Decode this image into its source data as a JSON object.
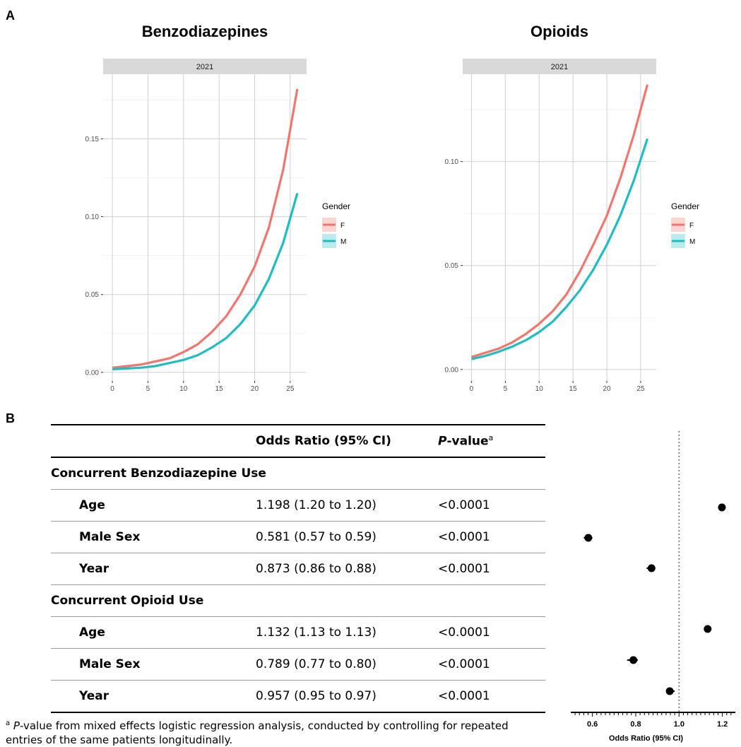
{
  "panel_a_label": "A",
  "panel_b_label": "B",
  "chart_data": [
    {
      "type": "line",
      "title": "Benzodiazepines",
      "facet_label": "2021",
      "legend": {
        "title": "Gender",
        "entries": [
          "F",
          "M"
        ],
        "placement": "right"
      },
      "xlim": [
        -1.3,
        27.3
      ],
      "ylim": [
        -0.0055,
        0.1915
      ],
      "x_ticks": [
        0,
        5,
        10,
        15,
        20,
        25
      ],
      "y_ticks": [
        0.0,
        0.05,
        0.1,
        0.15
      ],
      "y_tick_labels": [
        "0.00",
        "0.05",
        "0.10",
        "0.15"
      ],
      "grid": true,
      "colors": {
        "F": "#F0766E",
        "M": "#1FBDC1"
      },
      "x": [
        0,
        2,
        4,
        6,
        8,
        10,
        12,
        14,
        16,
        18,
        20,
        22,
        24,
        26
      ],
      "series": [
        {
          "name": "F",
          "values": [
            0.003,
            0.004,
            0.005,
            0.007,
            0.009,
            0.013,
            0.018,
            0.026,
            0.036,
            0.05,
            0.068,
            0.093,
            0.13,
            0.182
          ]
        },
        {
          "name": "M",
          "values": [
            0.002,
            0.0025,
            0.003,
            0.004,
            0.006,
            0.008,
            0.011,
            0.016,
            0.022,
            0.031,
            0.043,
            0.06,
            0.083,
            0.115
          ]
        }
      ]
    },
    {
      "type": "line",
      "title": "Opioids",
      "facet_label": "2021",
      "legend": {
        "title": "Gender",
        "entries": [
          "F",
          "M"
        ],
        "placement": "right"
      },
      "xlim": [
        -1.3,
        27.3
      ],
      "ylim": [
        -0.0055,
        0.142
      ],
      "x_ticks": [
        0,
        5,
        10,
        15,
        20,
        25
      ],
      "y_ticks": [
        0.0,
        0.05,
        0.1
      ],
      "y_tick_labels": [
        "0.00",
        "0.05",
        "0.10"
      ],
      "grid": true,
      "colors": {
        "F": "#F0766E",
        "M": "#1FBDC1"
      },
      "x": [
        0,
        2,
        4,
        6,
        8,
        10,
        12,
        14,
        16,
        18,
        20,
        22,
        24,
        26
      ],
      "series": [
        {
          "name": "F",
          "values": [
            0.006,
            0.008,
            0.01,
            0.013,
            0.017,
            0.022,
            0.028,
            0.036,
            0.047,
            0.06,
            0.074,
            0.092,
            0.113,
            0.137
          ]
        },
        {
          "name": "M",
          "values": [
            0.005,
            0.0065,
            0.0085,
            0.011,
            0.014,
            0.018,
            0.023,
            0.03,
            0.038,
            0.048,
            0.06,
            0.074,
            0.091,
            0.111
          ]
        }
      ]
    },
    {
      "type": "scatter",
      "subtype": "forest",
      "xlabel": "Odds Ratio (95% CI)",
      "xlim": [
        0.5,
        1.26
      ],
      "x_ticks": [
        0.6,
        0.8,
        1.0,
        1.2
      ],
      "x_tick_labels": [
        "0.6",
        "0.8",
        "1.0",
        "1.2"
      ],
      "reference_line": 1.0,
      "points": [
        {
          "or": 1.198,
          "lo": 1.2,
          "hi": 1.2
        },
        {
          "or": 0.581,
          "lo": 0.57,
          "hi": 0.59
        },
        {
          "or": 0.873,
          "lo": 0.86,
          "hi": 0.88
        },
        {
          "or": 1.132,
          "lo": 1.13,
          "hi": 1.13
        },
        {
          "or": 0.789,
          "lo": 0.77,
          "hi": 0.8
        },
        {
          "or": 0.957,
          "lo": 0.95,
          "hi": 0.97
        }
      ]
    }
  ],
  "table": {
    "header": {
      "odds_ratio": "Odds Ratio (95% CI)",
      "p_value_italic": "P",
      "p_value_rest": "-value",
      "p_value_sup": "a"
    },
    "groups": [
      {
        "name": "Concurrent Benzodiazepine Use",
        "rows": [
          {
            "variable": "Age",
            "or_ci": "1.198 (1.20 to 1.20)",
            "p": "<0.0001"
          },
          {
            "variable": "Male Sex",
            "or_ci": "0.581 (0.57 to 0.59)",
            "p": "<0.0001"
          },
          {
            "variable": "Year",
            "or_ci": "0.873 (0.86 to 0.88)",
            "p": "<0.0001"
          }
        ]
      },
      {
        "name": "Concurrent Opioid Use",
        "rows": [
          {
            "variable": "Age",
            "or_ci": "1.132 (1.13 to 1.13)",
            "p": "<0.0001"
          },
          {
            "variable": "Male Sex",
            "or_ci": "0.789 (0.77 to 0.80)",
            "p": "<0.0001"
          },
          {
            "variable": "Year",
            "or_ci": "0.957 (0.95 to 0.97)",
            "p": "<0.0001"
          }
        ]
      }
    ]
  },
  "footnote": {
    "marker": "a",
    "italic": "P",
    "text": "-value from mixed effects logistic regression analysis, conducted by controlling for repeated entries of the same patients longitudinally."
  }
}
